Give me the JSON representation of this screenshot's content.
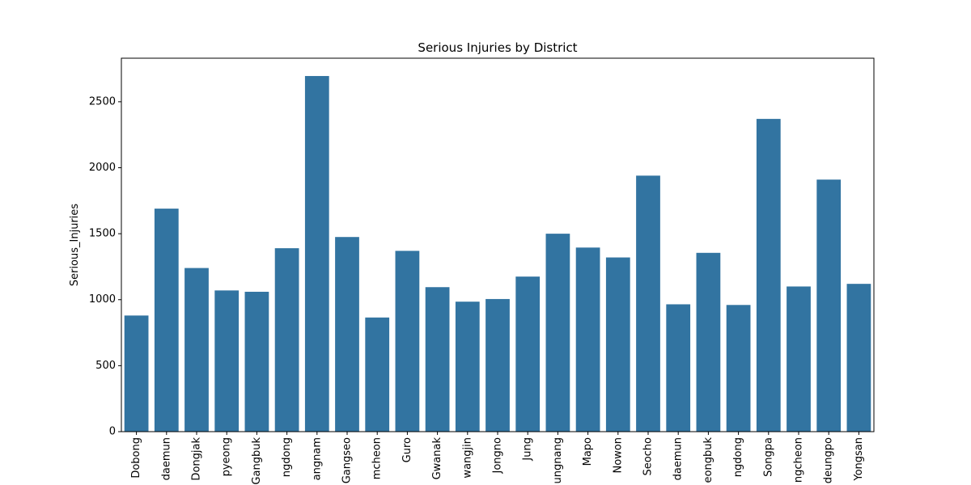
{
  "chart_data": {
    "type": "bar",
    "title": "Serious Injuries by District",
    "xlabel": "",
    "ylabel": "Serious_Injuries",
    "ylim": [
      0,
      2830
    ],
    "yticks": [
      0,
      500,
      1000,
      1500,
      2000,
      2500
    ],
    "bar_color": "#3274a1",
    "grid": false,
    "categories": [
      "Dobong",
      "Dongdaemun",
      "Dongjak",
      "Eunpyeong",
      "Gangbuk",
      "Gangdong",
      "Gangnam",
      "Gangseo",
      "Geumcheon",
      "Guro",
      "Gwanak",
      "Gwangjin",
      "Jongno",
      "Jung",
      "Jungnang",
      "Mapo",
      "Nowon",
      "Seocho",
      "Seodaemun",
      "Seongbuk",
      "Seongdong",
      "Songpa",
      "Yangcheon",
      "Yeongdeungpo",
      "Yongsan"
    ],
    "tick_labels": [
      "Dobong",
      "daemun",
      "Dongjak",
      "pyeong",
      "Gangbuk",
      "ngdong",
      "angnam",
      "Gangseo",
      "mcheon",
      "Guro",
      "Gwanak",
      "wangjin",
      "Jongno",
      "Jung",
      "ungnang",
      "Mapo",
      "Nowon",
      "Seocho",
      "daemun",
      "eongbuk",
      "ngdong",
      "Songpa",
      "ngcheon",
      "deungpo",
      "Yongsan"
    ],
    "values": [
      880,
      1690,
      1240,
      1070,
      1060,
      1390,
      2695,
      1475,
      865,
      1370,
      1095,
      985,
      1005,
      1175,
      1500,
      1395,
      1320,
      1940,
      965,
      1355,
      960,
      2370,
      1100,
      1910,
      1120
    ]
  }
}
